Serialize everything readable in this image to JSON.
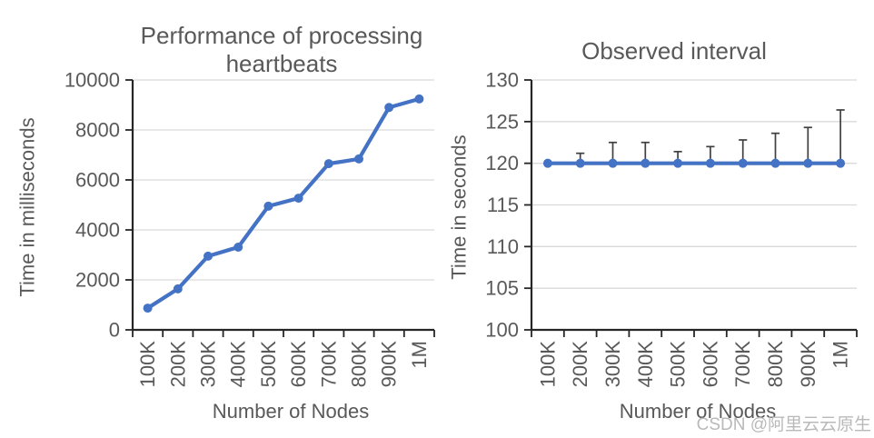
{
  "watermark": {
    "text": "CSDN @阿里云云原生",
    "color": "#b9b9b9"
  },
  "style_colors": {
    "series": "#4472c4",
    "axis_line": "#262626",
    "gridline": "#d9d9d9",
    "text": "#595959",
    "error_bar": "#404040"
  },
  "chart_data": [
    {
      "type": "line",
      "title": "Performance of processing heartbeats",
      "title_lines": [
        "Performance of processing",
        "heartbeats"
      ],
      "xlabel": "Number of Nodes",
      "ylabel": "Time in milliseconds",
      "categories": [
        "100K",
        "200K",
        "300K",
        "400K",
        "500K",
        "600K",
        "700K",
        "800K",
        "900K",
        "1M"
      ],
      "values": [
        870,
        1640,
        2950,
        3310,
        4950,
        5270,
        6650,
        6840,
        8900,
        9240
      ],
      "ylim": [
        0,
        10000
      ],
      "ytick_step": 2000,
      "grid": true,
      "legend": "none"
    },
    {
      "type": "line",
      "title": "Observed interval",
      "title_lines": [
        "Observed interval"
      ],
      "xlabel": "Number of Nodes",
      "ylabel": "Time in seconds",
      "categories": [
        "100K",
        "200K",
        "300K",
        "400K",
        "500K",
        "600K",
        "700K",
        "800K",
        "900K",
        "1M"
      ],
      "values": [
        120,
        120,
        120,
        120,
        120,
        120,
        120,
        120,
        120,
        120
      ],
      "error_upper": [
        null,
        121.2,
        122.5,
        122.5,
        121.4,
        122.0,
        122.8,
        123.6,
        124.3,
        126.4
      ],
      "ylim": [
        100,
        130
      ],
      "ytick_step": 5,
      "grid": true,
      "legend": "none"
    }
  ]
}
